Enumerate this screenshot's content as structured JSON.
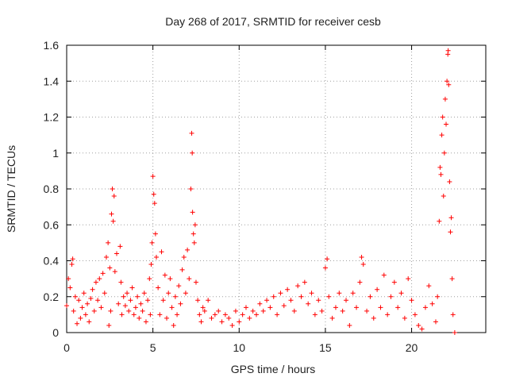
{
  "chart_data": {
    "type": "scatter",
    "title": "Day 268 of 2017, SRMTID for receiver cesb",
    "xlabel": "GPS time / hours",
    "ylabel": "SRMTID / TECUs",
    "xlim": [
      0,
      24.3
    ],
    "ylim": [
      0,
      1.6
    ],
    "xticks": [
      0,
      5,
      10,
      15,
      20
    ],
    "xtick_labels": [
      "0",
      "5",
      "10",
      "15",
      "20"
    ],
    "yticks": [
      0,
      0.2,
      0.4,
      0.6,
      0.8,
      1,
      1.2,
      1.4,
      1.6
    ],
    "ytick_labels": [
      "0",
      "0.2",
      "0.4",
      "0.6",
      "0.8",
      "1",
      "1.2",
      "1.4",
      "1.6"
    ],
    "grid": true,
    "marker": "+",
    "series": [
      {
        "name": "SRMTID",
        "color": "#ff0000",
        "points": [
          [
            0.0,
            0.15
          ],
          [
            0.1,
            0.3
          ],
          [
            0.2,
            0.25
          ],
          [
            0.3,
            0.38
          ],
          [
            0.35,
            0.41
          ],
          [
            0.4,
            0.12
          ],
          [
            0.5,
            0.2
          ],
          [
            0.6,
            0.05
          ],
          [
            0.7,
            0.18
          ],
          [
            0.8,
            0.08
          ],
          [
            0.9,
            0.14
          ],
          [
            1.0,
            0.22
          ],
          [
            1.1,
            0.1
          ],
          [
            1.2,
            0.16
          ],
          [
            1.3,
            0.06
          ],
          [
            1.4,
            0.19
          ],
          [
            1.5,
            0.24
          ],
          [
            1.6,
            0.12
          ],
          [
            1.7,
            0.28
          ],
          [
            1.8,
            0.18
          ],
          [
            1.9,
            0.3
          ],
          [
            2.0,
            0.14
          ],
          [
            2.1,
            0.33
          ],
          [
            2.2,
            0.22
          ],
          [
            2.3,
            0.42
          ],
          [
            2.4,
            0.5
          ],
          [
            2.45,
            0.04
          ],
          [
            2.5,
            0.36
          ],
          [
            2.55,
            0.12
          ],
          [
            2.6,
            0.66
          ],
          [
            2.65,
            0.8
          ],
          [
            2.7,
            0.62
          ],
          [
            2.75,
            0.76
          ],
          [
            2.8,
            0.34
          ],
          [
            2.9,
            0.44
          ],
          [
            3.0,
            0.16
          ],
          [
            3.1,
            0.48
          ],
          [
            3.15,
            0.28
          ],
          [
            3.2,
            0.1
          ],
          [
            3.3,
            0.2
          ],
          [
            3.4,
            0.15
          ],
          [
            3.5,
            0.22
          ],
          [
            3.6,
            0.12
          ],
          [
            3.7,
            0.18
          ],
          [
            3.8,
            0.25
          ],
          [
            3.9,
            0.1
          ],
          [
            4.0,
            0.14
          ],
          [
            4.1,
            0.2
          ],
          [
            4.2,
            0.08
          ],
          [
            4.3,
            0.16
          ],
          [
            4.4,
            0.12
          ],
          [
            4.5,
            0.22
          ],
          [
            4.6,
            0.06
          ],
          [
            4.7,
            0.18
          ],
          [
            4.8,
            0.3
          ],
          [
            4.85,
            0.1
          ],
          [
            4.9,
            0.38
          ],
          [
            4.95,
            0.5
          ],
          [
            5.0,
            0.87
          ],
          [
            5.05,
            0.77
          ],
          [
            5.1,
            0.72
          ],
          [
            5.15,
            0.55
          ],
          [
            5.2,
            0.42
          ],
          [
            5.3,
            0.25
          ],
          [
            5.4,
            0.1
          ],
          [
            5.5,
            0.45
          ],
          [
            5.6,
            0.18
          ],
          [
            5.7,
            0.32
          ],
          [
            5.8,
            0.08
          ],
          [
            5.9,
            0.22
          ],
          [
            6.0,
            0.3
          ],
          [
            6.1,
            0.14
          ],
          [
            6.2,
            0.04
          ],
          [
            6.3,
            0.2
          ],
          [
            6.4,
            0.1
          ],
          [
            6.5,
            0.26
          ],
          [
            6.6,
            0.16
          ],
          [
            6.7,
            0.35
          ],
          [
            6.8,
            0.42
          ],
          [
            6.9,
            0.22
          ],
          [
            7.0,
            0.46
          ],
          [
            7.1,
            0.3
          ],
          [
            7.2,
            0.8
          ],
          [
            7.25,
            1.11
          ],
          [
            7.28,
            1.0
          ],
          [
            7.3,
            0.67
          ],
          [
            7.35,
            0.55
          ],
          [
            7.4,
            0.5
          ],
          [
            7.45,
            0.6
          ],
          [
            7.5,
            0.28
          ],
          [
            7.6,
            0.18
          ],
          [
            7.7,
            0.1
          ],
          [
            7.8,
            0.06
          ],
          [
            7.9,
            0.14
          ],
          [
            8.0,
            0.12
          ],
          [
            8.2,
            0.18
          ],
          [
            8.4,
            0.08
          ],
          [
            8.6,
            0.1
          ],
          [
            8.8,
            0.12
          ],
          [
            9.0,
            0.06
          ],
          [
            9.2,
            0.1
          ],
          [
            9.4,
            0.08
          ],
          [
            9.6,
            0.04
          ],
          [
            9.8,
            0.12
          ],
          [
            10.0,
            0.06
          ],
          [
            10.2,
            0.1
          ],
          [
            10.4,
            0.14
          ],
          [
            10.6,
            0.08
          ],
          [
            10.8,
            0.12
          ],
          [
            11.0,
            0.1
          ],
          [
            11.2,
            0.16
          ],
          [
            11.4,
            0.12
          ],
          [
            11.6,
            0.18
          ],
          [
            11.8,
            0.14
          ],
          [
            12.0,
            0.2
          ],
          [
            12.2,
            0.1
          ],
          [
            12.4,
            0.22
          ],
          [
            12.6,
            0.15
          ],
          [
            12.8,
            0.24
          ],
          [
            13.0,
            0.18
          ],
          [
            13.2,
            0.12
          ],
          [
            13.4,
            0.26
          ],
          [
            13.6,
            0.2
          ],
          [
            13.8,
            0.28
          ],
          [
            14.0,
            0.16
          ],
          [
            14.2,
            0.22
          ],
          [
            14.4,
            0.1
          ],
          [
            14.6,
            0.18
          ],
          [
            14.8,
            0.12
          ],
          [
            15.0,
            0.36
          ],
          [
            15.1,
            0.41
          ],
          [
            15.2,
            0.2
          ],
          [
            15.4,
            0.08
          ],
          [
            15.6,
            0.14
          ],
          [
            15.8,
            0.22
          ],
          [
            16.0,
            0.12
          ],
          [
            16.2,
            0.18
          ],
          [
            16.4,
            0.04
          ],
          [
            16.6,
            0.22
          ],
          [
            16.8,
            0.14
          ],
          [
            17.0,
            0.28
          ],
          [
            17.1,
            0.42
          ],
          [
            17.2,
            0.38
          ],
          [
            17.4,
            0.12
          ],
          [
            17.6,
            0.2
          ],
          [
            17.8,
            0.08
          ],
          [
            18.0,
            0.24
          ],
          [
            18.2,
            0.14
          ],
          [
            18.4,
            0.32
          ],
          [
            18.6,
            0.1
          ],
          [
            18.8,
            0.2
          ],
          [
            19.0,
            0.28
          ],
          [
            19.2,
            0.14
          ],
          [
            19.4,
            0.22
          ],
          [
            19.6,
            0.08
          ],
          [
            19.8,
            0.3
          ],
          [
            20.0,
            0.18
          ],
          [
            20.2,
            0.1
          ],
          [
            20.4,
            0.04
          ],
          [
            20.6,
            0.02
          ],
          [
            20.8,
            0.14
          ],
          [
            21.0,
            0.26
          ],
          [
            21.2,
            0.16
          ],
          [
            21.4,
            0.06
          ],
          [
            21.5,
            0.2
          ],
          [
            21.6,
            0.62
          ],
          [
            21.65,
            0.92
          ],
          [
            21.7,
            0.88
          ],
          [
            21.75,
            1.1
          ],
          [
            21.8,
            1.2
          ],
          [
            21.85,
            0.76
          ],
          [
            21.9,
            1.0
          ],
          [
            21.95,
            1.3
          ],
          [
            22.0,
            1.16
          ],
          [
            22.05,
            1.4
          ],
          [
            22.1,
            1.55
          ],
          [
            22.12,
            1.57
          ],
          [
            22.15,
            1.38
          ],
          [
            22.2,
            0.84
          ],
          [
            22.25,
            0.56
          ],
          [
            22.3,
            0.64
          ],
          [
            22.35,
            0.3
          ],
          [
            22.4,
            0.1
          ],
          [
            22.5,
            0.0
          ]
        ]
      }
    ]
  }
}
